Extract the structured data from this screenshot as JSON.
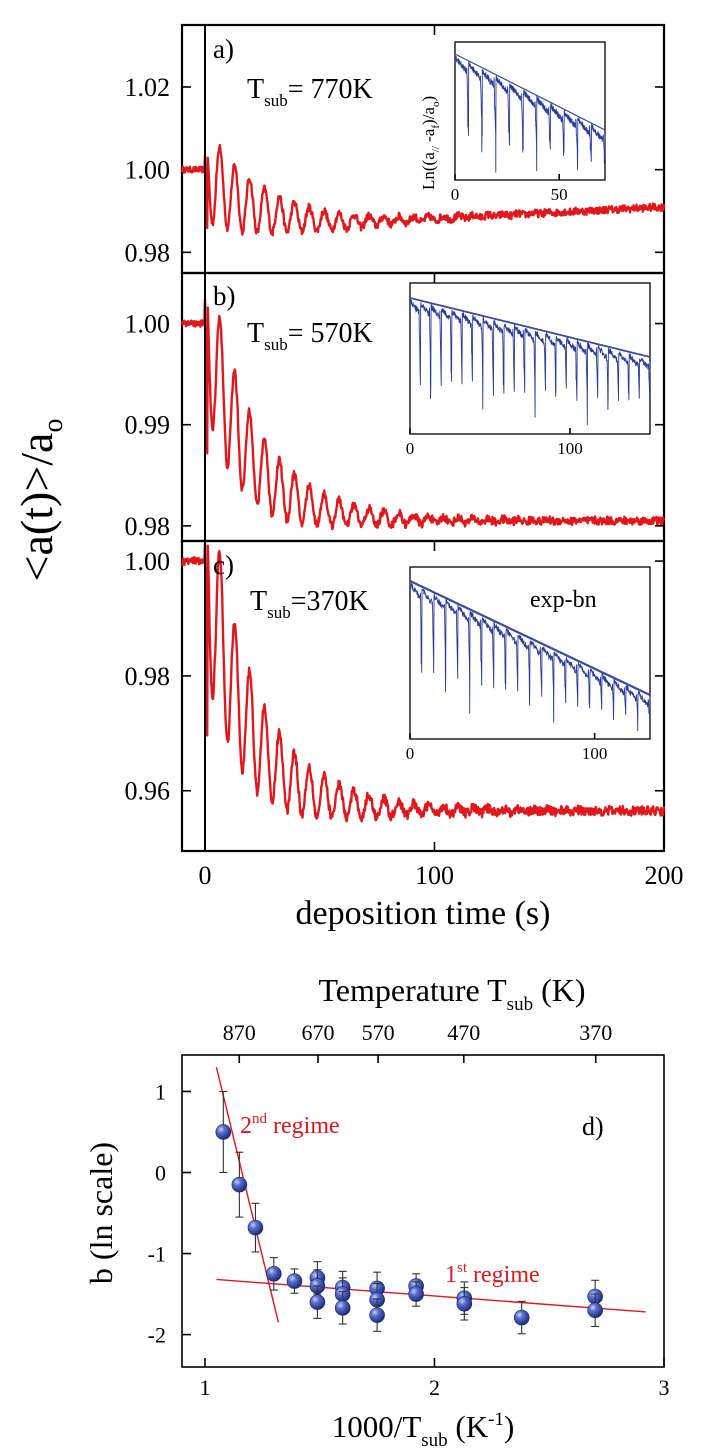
{
  "chart_data": [
    {
      "type": "line",
      "panel": "a",
      "label": "a)",
      "annotation": {
        "main": "T",
        "sub": "sub",
        "rest": "= 770K"
      },
      "xlim": [
        -10,
        200
      ],
      "ylim": [
        0.975,
        1.035
      ],
      "yticks": [
        0.98,
        1.0,
        1.02
      ],
      "ytick_labels": [
        "0.98",
        "1.00",
        "1.02"
      ],
      "series": [
        {
          "baseline_before": 1.0,
          "settle_level": 0.987,
          "end_level": 0.991,
          "period_s": 6.5,
          "initial_amplitude": 0.012
        }
      ],
      "inset": {
        "ylabel": "Ln((a//-af)/ao)",
        "xticks": [
          0,
          50
        ],
        "xtick_labels": [
          "0",
          "50"
        ],
        "xlim": [
          0,
          72
        ],
        "n_dips": 11
      }
    },
    {
      "type": "line",
      "panel": "b",
      "label": "b)",
      "annotation": {
        "main": "T",
        "sub": "sub",
        "rest": "= 570K"
      },
      "xlim": [
        -10,
        200
      ],
      "ylim": [
        0.9785,
        1.005
      ],
      "yticks": [
        0.98,
        0.99,
        1.0
      ],
      "ytick_labels": [
        "0.98",
        "0.99",
        "1.00"
      ],
      "series": [
        {
          "baseline_before": 1.0,
          "settle_level": 0.9805,
          "period_s": 6.5,
          "initial_amplitude": 0.008
        }
      ],
      "inset": {
        "xticks": [
          0,
          100
        ],
        "xtick_labels": [
          "0",
          "100"
        ],
        "xlim": [
          0,
          150
        ],
        "n_dips": 23
      }
    },
    {
      "type": "line",
      "panel": "c",
      "label": "c)",
      "annotation": {
        "main": "T",
        "sub": "sub",
        "rest": "=370K"
      },
      "xlim": [
        -10,
        200
      ],
      "ylim": [
        0.9495,
        1.0035
      ],
      "yticks": [
        0.96,
        0.98,
        1.0
      ],
      "ytick_labels": [
        "0.96",
        "0.98",
        "1.00"
      ],
      "series": [
        {
          "baseline_before": 1.0,
          "settle_level": 0.9565,
          "period_s": 6.5,
          "initial_amplitude": 0.018
        }
      ],
      "inset": {
        "label": "exp-bn",
        "xticks": [
          0,
          100
        ],
        "xtick_labels": [
          "0",
          "100"
        ],
        "xlim": [
          0,
          130
        ],
        "n_dips": 20
      }
    },
    {
      "type": "scatter",
      "panel": "d",
      "label": "d)",
      "xlabel": {
        "main": "1000/T",
        "sub": "sub",
        "rest": " (K",
        "sup": "-1",
        "end": ")"
      },
      "ylabel": "b (ln scale)",
      "top_axis_title": {
        "main": "Temperature T",
        "sub": "sub",
        "rest": " (K)"
      },
      "top_ticks_K": [
        870,
        670,
        570,
        470,
        370
      ],
      "top_tick_labels": [
        "870",
        "670",
        "570",
        "470",
        "370"
      ],
      "xlim": [
        0.9,
        3.0
      ],
      "ylim": [
        -2.4,
        1.45
      ],
      "xticks": [
        1,
        2,
        3
      ],
      "xtick_labels": [
        "1",
        "2",
        "3"
      ],
      "yticks": [
        -2,
        -1,
        0,
        1
      ],
      "ytick_labels": [
        "-2",
        "-1",
        "0",
        "1"
      ],
      "points": [
        {
          "x": 1.08,
          "y": 0.5,
          "err": 0.5
        },
        {
          "x": 1.15,
          "y": -0.15,
          "err": 0.4
        },
        {
          "x": 1.22,
          "y": -0.68,
          "err": 0.3
        },
        {
          "x": 1.3,
          "y": -1.25,
          "err": 0.2
        },
        {
          "x": 1.39,
          "y": -1.34,
          "err": 0.15
        },
        {
          "x": 1.49,
          "y": -1.3,
          "err": 0.2
        },
        {
          "x": 1.49,
          "y": -1.4,
          "err": 0.2
        },
        {
          "x": 1.49,
          "y": -1.6,
          "err": 0.2
        },
        {
          "x": 1.6,
          "y": -1.42,
          "err": 0.2
        },
        {
          "x": 1.6,
          "y": -1.5,
          "err": 0.2
        },
        {
          "x": 1.6,
          "y": -1.67,
          "err": 0.2
        },
        {
          "x": 1.75,
          "y": -1.43,
          "err": 0.2
        },
        {
          "x": 1.75,
          "y": -1.57,
          "err": 0.2
        },
        {
          "x": 1.75,
          "y": -1.76,
          "err": 0.2
        },
        {
          "x": 1.92,
          "y": -1.4,
          "err": 0.15
        },
        {
          "x": 1.92,
          "y": -1.5,
          "err": 0.15
        },
        {
          "x": 2.13,
          "y": -1.55,
          "err": 0.2
        },
        {
          "x": 2.13,
          "y": -1.62,
          "err": 0.2
        },
        {
          "x": 2.38,
          "y": -1.79,
          "err": 0.2
        },
        {
          "x": 2.7,
          "y": -1.53,
          "err": 0.2
        },
        {
          "x": 2.7,
          "y": -1.7,
          "err": 0.2
        }
      ],
      "fits": [
        {
          "name": "1st regime",
          "x": [
            1.05,
            2.92
          ],
          "y": [
            -1.32,
            -1.72
          ]
        },
        {
          "name": "2nd regime",
          "x": [
            1.05,
            1.32
          ],
          "y": [
            1.3,
            -1.85
          ]
        }
      ],
      "regime_labels": [
        {
          "num": "2",
          "sup": "nd",
          "text": " regime"
        },
        {
          "num": "1",
          "sup": "st",
          "text": " regime"
        }
      ]
    }
  ],
  "shared": {
    "xticks": [
      0,
      100,
      200
    ],
    "xtick_labels": [
      "0",
      "100",
      "200"
    ],
    "xlabel": "deposition time (s)",
    "ylabel": "<a(t)>/a",
    "ylabel_sub": "o"
  },
  "colors": {
    "trace": "#e3171b",
    "inset": "#2a3d9a",
    "markers": "#2b3f9b"
  }
}
